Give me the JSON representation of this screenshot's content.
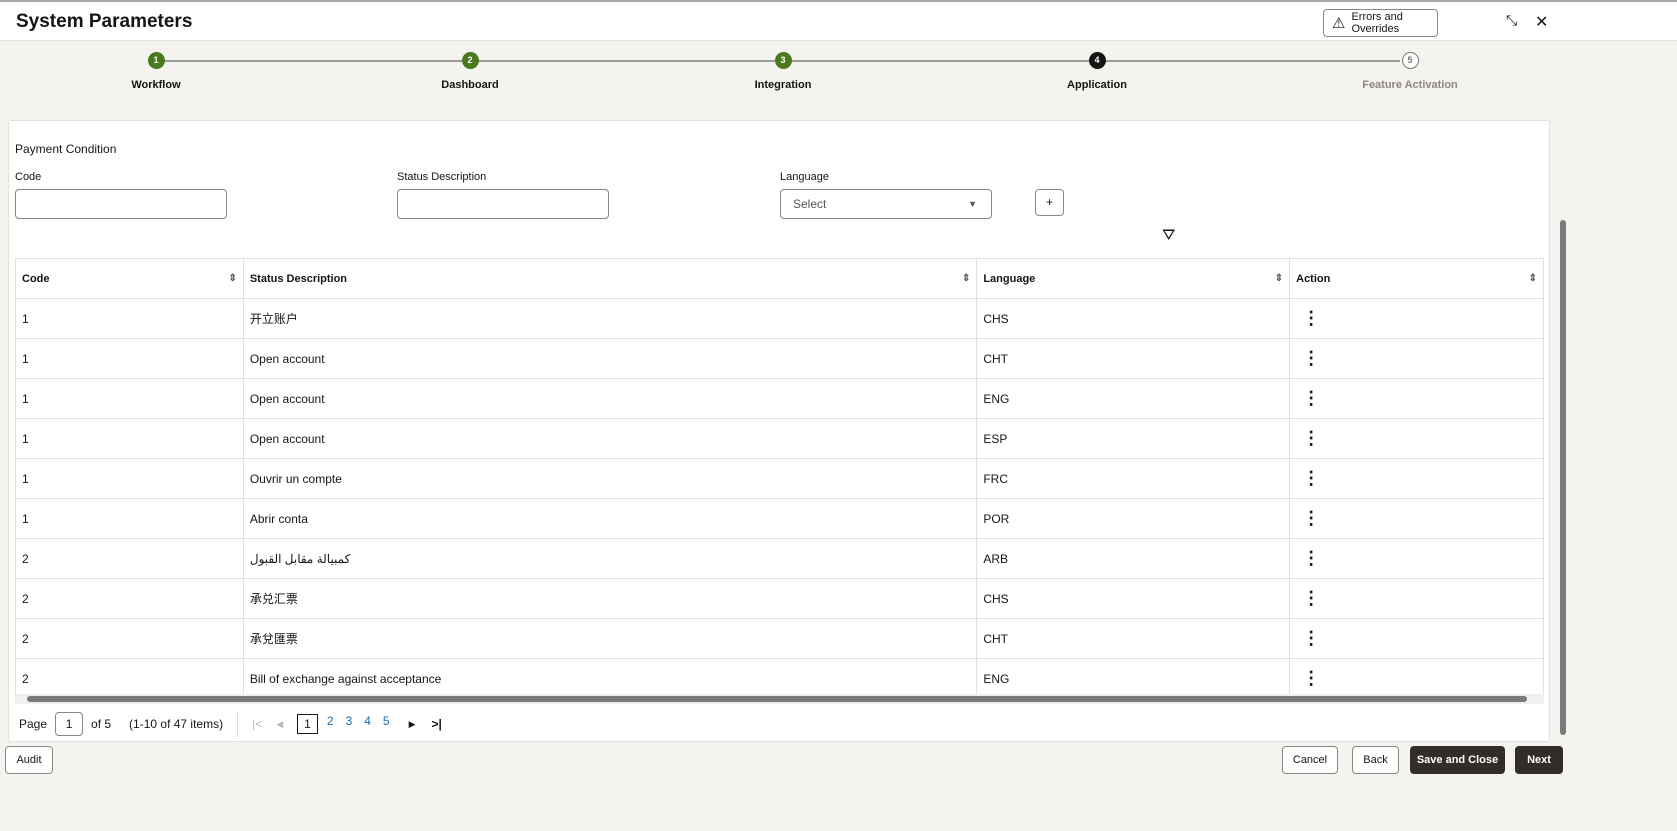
{
  "header": {
    "title": "System Parameters",
    "errors_label": "Errors and Overrides"
  },
  "steps": [
    {
      "num": "1",
      "label": "Workflow",
      "state": "complete"
    },
    {
      "num": "2",
      "label": "Dashboard",
      "state": "complete"
    },
    {
      "num": "3",
      "label": "Integration",
      "state": "complete"
    },
    {
      "num": "4",
      "label": "Application",
      "state": "current"
    },
    {
      "num": "5",
      "label": "Feature Activation",
      "state": "pending"
    }
  ],
  "colors": {
    "complete": "#4a7a1e",
    "current": "#161513",
    "dark_button": "#312d2a",
    "link": "#1b6ea8"
  },
  "form": {
    "section": "Payment Condition",
    "code_label": "Code",
    "code_value": "",
    "desc_label": "Status Description",
    "desc_value": "",
    "lang_label": "Language",
    "lang_placeholder": "Select",
    "add_label": "+"
  },
  "table": {
    "columns": [
      "Code",
      "Status Description",
      "Language",
      "Action"
    ],
    "rows": [
      [
        "1",
        "开立账户",
        "CHS"
      ],
      [
        "1",
        "Open account",
        "CHT"
      ],
      [
        "1",
        "Open account",
        "ENG"
      ],
      [
        "1",
        "Open account",
        "ESP"
      ],
      [
        "1",
        "Ouvrir un compte",
        "FRC"
      ],
      [
        "1",
        "Abrir conta",
        "POR"
      ],
      [
        "2",
        "كمبيالة مقابل القبول",
        "ARB"
      ],
      [
        "2",
        "承兑汇票",
        "CHS"
      ],
      [
        "2",
        "承兌匯票",
        "CHT"
      ],
      [
        "2",
        "Bill of exchange against acceptance",
        "ENG"
      ]
    ]
  },
  "pager": {
    "page_label": "Page",
    "page": "1",
    "of": "of 5",
    "items": "(1-10 of 47 items)",
    "pages": [
      "1",
      "2",
      "3",
      "4",
      "5"
    ]
  },
  "footer": {
    "audit": "Audit",
    "cancel": "Cancel",
    "back": "Back",
    "save_close": "Save and Close",
    "next": "Next"
  }
}
